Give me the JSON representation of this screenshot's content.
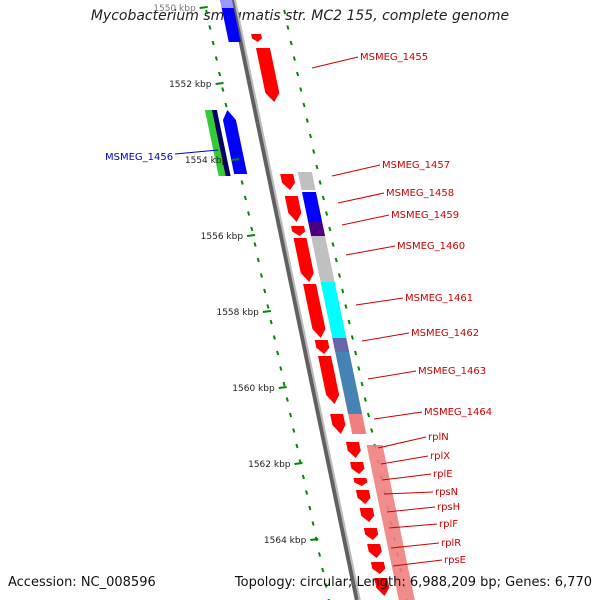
{
  "title": "Mycobacterium smegmatis str. MC2 155, complete genome",
  "footer": {
    "accession": "Accession: NC_008596",
    "topology": "Topology: circular; Length: 6,988,209 bp; Genes: 6,770"
  },
  "ruler_labels": [
    "1550 kbp",
    "1552 kbp",
    "1554 kbp",
    "1556 kbp",
    "1558 kbp",
    "1560 kbp",
    "1562 kbp",
    "1564 kbp"
  ],
  "gene_labels": [
    {
      "text": "MSMEG_1455",
      "color": "#cc0000"
    },
    {
      "text": "MSMEG_1456",
      "color": "#0000cc"
    },
    {
      "text": "MSMEG_1457",
      "color": "#cc0000"
    },
    {
      "text": "MSMEG_1458",
      "color": "#cc0000"
    },
    {
      "text": "MSMEG_1459",
      "color": "#cc0000"
    },
    {
      "text": "MSMEG_1460",
      "color": "#cc0000"
    },
    {
      "text": "MSMEG_1461",
      "color": "#cc0000"
    },
    {
      "text": "MSMEG_1462",
      "color": "#cc0000"
    },
    {
      "text": "MSMEG_1463",
      "color": "#cc0000"
    },
    {
      "text": "MSMEG_1464",
      "color": "#cc0000"
    },
    {
      "text": "rplN",
      "color": "#cc0000"
    },
    {
      "text": "rplX",
      "color": "#cc0000"
    },
    {
      "text": "rplE",
      "color": "#cc0000"
    },
    {
      "text": "rpsN",
      "color": "#cc0000"
    },
    {
      "text": "rpsH",
      "color": "#cc0000"
    },
    {
      "text": "rplF",
      "color": "#cc0000"
    },
    {
      "text": "rplR",
      "color": "#cc0000"
    },
    {
      "text": "rpsE",
      "color": "#cc0000"
    }
  ],
  "colors": {
    "cds": "#ff0000",
    "backbone": "#808080",
    "tick": "#008800",
    "blue": "#0000ff",
    "green": "#33cc33",
    "navy": "#000066",
    "gray": "#c0c0c0",
    "cyan": "#00ffff",
    "steelblue": "#4682b4",
    "pink": "#f08080",
    "purple": "#4b0082"
  }
}
